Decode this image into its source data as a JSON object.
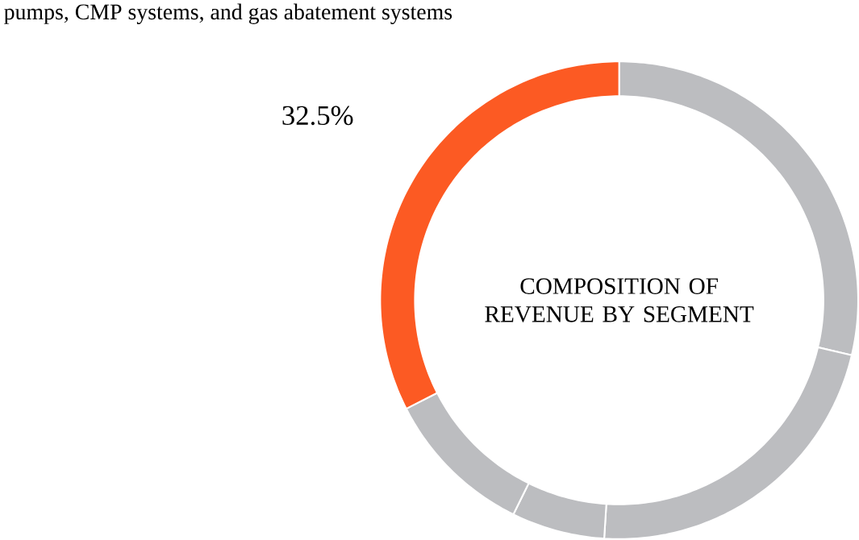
{
  "chart_data": {
    "type": "donut",
    "title": "COMPOSITION OF REVENUE BY SEGMENT",
    "annotations": [
      "pumps, CMP systems, and gas abatement systems"
    ],
    "categories": [
      null,
      null,
      null,
      null,
      null
    ],
    "values": [
      28.7,
      22.3,
      6.3,
      10.2,
      32.5
    ],
    "colors": [
      "#bcbdc0",
      "#bcbdc0",
      "#bcbdc0",
      "#bcbdc0",
      "#fc5a23"
    ],
    "value_labels": [
      null,
      null,
      null,
      null,
      "32.5%"
    ]
  }
}
